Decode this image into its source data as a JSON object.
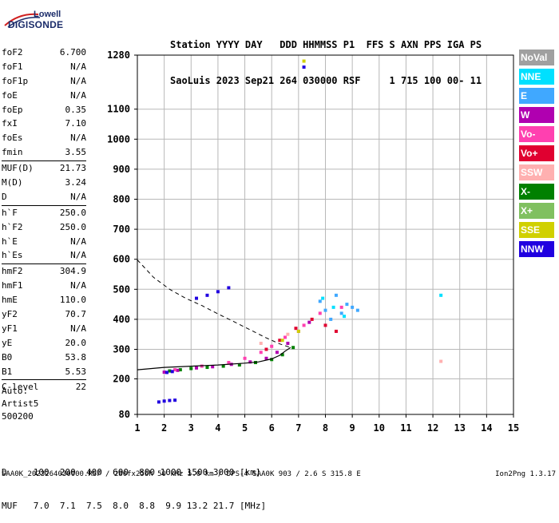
{
  "logo": {
    "line1": "Lowell",
    "line2": "DIGISONDE"
  },
  "header": {
    "line1": "Station YYYY DAY   DDD HHMMSS P1  FFS S AXN PPS IGA PS",
    "line2": "SaoLuis 2023 Sep21 264 030000 RSF     1 715 100 00- 11"
  },
  "params_group1": [
    {
      "key": "foF2",
      "value": "6.700"
    },
    {
      "key": "foF1",
      "value": "N/A"
    },
    {
      "key": "foF1p",
      "value": "N/A"
    },
    {
      "key": "foE",
      "value": "N/A"
    },
    {
      "key": "foEp",
      "value": "0.35"
    },
    {
      "key": "fxI",
      "value": "7.10"
    },
    {
      "key": "foEs",
      "value": "N/A"
    },
    {
      "key": "fmin",
      "value": "3.55"
    }
  ],
  "params_group2": [
    {
      "key": "MUF(D)",
      "value": "21.73"
    },
    {
      "key": "M(D)",
      "value": "3.24"
    },
    {
      "key": "D",
      "value": "N/A"
    }
  ],
  "params_group3": [
    {
      "key": "h`F",
      "value": "250.0"
    },
    {
      "key": "h`F2",
      "value": "250.0"
    },
    {
      "key": "h`E",
      "value": "N/A"
    },
    {
      "key": "h`Es",
      "value": "N/A"
    }
  ],
  "params_group4": [
    {
      "key": "hmF2",
      "value": "304.9"
    },
    {
      "key": "hmF1",
      "value": "N/A"
    },
    {
      "key": "hmE",
      "value": "110.0"
    },
    {
      "key": "yF2",
      "value": "70.7"
    },
    {
      "key": "yF1",
      "value": "N/A"
    },
    {
      "key": "yE",
      "value": "20.0"
    },
    {
      "key": "B0",
      "value": "53.8"
    },
    {
      "key": "B1",
      "value": "5.53"
    }
  ],
  "params_group5": [
    {
      "key": "C-level",
      "value": "22"
    }
  ],
  "auto": {
    "line1": "Auto:",
    "line2": "Artist5",
    "line3": "500200"
  },
  "legend": [
    {
      "label": "NoVal",
      "color": "#a0a0a0"
    },
    {
      "label": "NNE",
      "color": "#00e0ff"
    },
    {
      "label": "E",
      "color": "#40a8ff"
    },
    {
      "label": "W",
      "color": "#b000b0"
    },
    {
      "label": "Vo-",
      "color": "#ff40b0"
    },
    {
      "label": "Vo+",
      "color": "#e00030"
    },
    {
      "label": "SSW",
      "color": "#ffb0b0"
    },
    {
      "label": "X-",
      "color": "#008000"
    },
    {
      "label": "X+",
      "color": "#80c060"
    },
    {
      "label": "SSE",
      "color": "#d0d000"
    },
    {
      "label": "NNW",
      "color": "#2000e0"
    }
  ],
  "bottom": {
    "line1": "D     100  200  400  600  800 1000 1500 3000 [km]",
    "line2": "MUF   7.0  7.1  7.5  8.0  8.8  9.9 13.2 21.7 [MHz]"
  },
  "footer": {
    "left": "SAA0K_2023264030000.RSF / 280fx256h 50 kHz 5.0 km / DPS-4 SAA0K 903 / 2.6 S 315.8 E",
    "right": "Ion2Png 1.3.17"
  },
  "chart_data": {
    "type": "scatter",
    "x_ticks": [
      "1",
      "2",
      "3",
      "4",
      "5",
      "6",
      "7",
      "8",
      "9",
      "10",
      "11",
      "12",
      "13",
      "14",
      "15"
    ],
    "y_ticks": [
      "80",
      "200",
      "300",
      "400",
      "500",
      "600",
      "700",
      "800",
      "900",
      "1000",
      "1100",
      "1280"
    ],
    "xlim": [
      1,
      15
    ],
    "ylim": [
      80,
      1280
    ],
    "grid": true,
    "series": [
      {
        "name": "X-",
        "color": "#008000",
        "points": [
          [
            2.2,
            228
          ],
          [
            2.6,
            232
          ],
          [
            3.0,
            236
          ],
          [
            3.6,
            240
          ],
          [
            4.2,
            244
          ],
          [
            4.8,
            248
          ],
          [
            5.4,
            256
          ],
          [
            6.0,
            266
          ],
          [
            6.4,
            282
          ],
          [
            6.8,
            306
          ]
        ]
      },
      {
        "name": "W",
        "color": "#b000b0",
        "points": [
          [
            2.0,
            224
          ],
          [
            2.5,
            230
          ],
          [
            3.2,
            238
          ],
          [
            3.8,
            242
          ],
          [
            4.5,
            250
          ],
          [
            5.2,
            258
          ],
          [
            5.8,
            270
          ],
          [
            6.2,
            290
          ],
          [
            6.6,
            320
          ],
          [
            7.0,
            360
          ],
          [
            7.4,
            390
          ]
        ]
      },
      {
        "name": "Vo-",
        "color": "#ff40b0",
        "points": [
          [
            2.4,
            232
          ],
          [
            3.4,
            244
          ],
          [
            4.4,
            256
          ],
          [
            5.0,
            270
          ],
          [
            5.6,
            290
          ],
          [
            6.0,
            310
          ],
          [
            6.5,
            340
          ],
          [
            7.2,
            380
          ],
          [
            7.8,
            420
          ],
          [
            8.6,
            440
          ]
        ]
      },
      {
        "name": "Vo+",
        "color": "#e00030",
        "points": [
          [
            5.8,
            300
          ],
          [
            6.3,
            330
          ],
          [
            6.9,
            370
          ],
          [
            7.5,
            400
          ],
          [
            8.0,
            380
          ],
          [
            8.4,
            360
          ]
        ]
      },
      {
        "name": "E",
        "color": "#40a8ff",
        "points": [
          [
            7.8,
            460
          ],
          [
            8.0,
            430
          ],
          [
            8.2,
            400
          ],
          [
            8.4,
            480
          ],
          [
            8.6,
            420
          ],
          [
            8.8,
            450
          ],
          [
            9.0,
            440
          ],
          [
            9.2,
            430
          ]
        ]
      },
      {
        "name": "NNE",
        "color": "#00e0ff",
        "points": [
          [
            7.9,
            470
          ],
          [
            8.3,
            440
          ],
          [
            8.7,
            410
          ],
          [
            12.3,
            480
          ]
        ]
      },
      {
        "name": "SSE",
        "color": "#d0d000",
        "points": [
          [
            6.4,
            330
          ],
          [
            7.0,
            360
          ],
          [
            7.2,
            1260
          ]
        ]
      },
      {
        "name": "NNW",
        "color": "#2000e0",
        "points": [
          [
            1.8,
            122
          ],
          [
            2.0,
            125
          ],
          [
            2.2,
            127
          ],
          [
            2.4,
            128
          ],
          [
            2.1,
            223
          ],
          [
            2.3,
            226
          ],
          [
            3.2,
            470
          ],
          [
            3.6,
            480
          ],
          [
            4.0,
            492
          ],
          [
            4.4,
            505
          ],
          [
            7.2,
            1240
          ]
        ]
      },
      {
        "name": "SSW",
        "color": "#ffb0b0",
        "points": [
          [
            5.6,
            320
          ],
          [
            6.6,
            350
          ],
          [
            12.3,
            260
          ]
        ]
      }
    ],
    "profile_curve": [
      [
        1.0,
        232
      ],
      [
        2.0,
        240
      ],
      [
        3.0,
        244
      ],
      [
        4.0,
        248
      ],
      [
        5.0,
        254
      ],
      [
        5.5,
        258
      ],
      [
        6.0,
        268
      ],
      [
        6.3,
        280
      ],
      [
        6.5,
        294
      ],
      [
        6.7,
        306
      ]
    ],
    "profile_dashed": [
      [
        1.0,
        598
      ],
      [
        1.6,
        540
      ],
      [
        2.2,
        500
      ],
      [
        2.8,
        470
      ],
      [
        3.4,
        446
      ],
      [
        4.0,
        418
      ],
      [
        4.6,
        392
      ],
      [
        5.2,
        365
      ],
      [
        5.8,
        338
      ],
      [
        6.3,
        318
      ],
      [
        6.7,
        306
      ]
    ]
  }
}
